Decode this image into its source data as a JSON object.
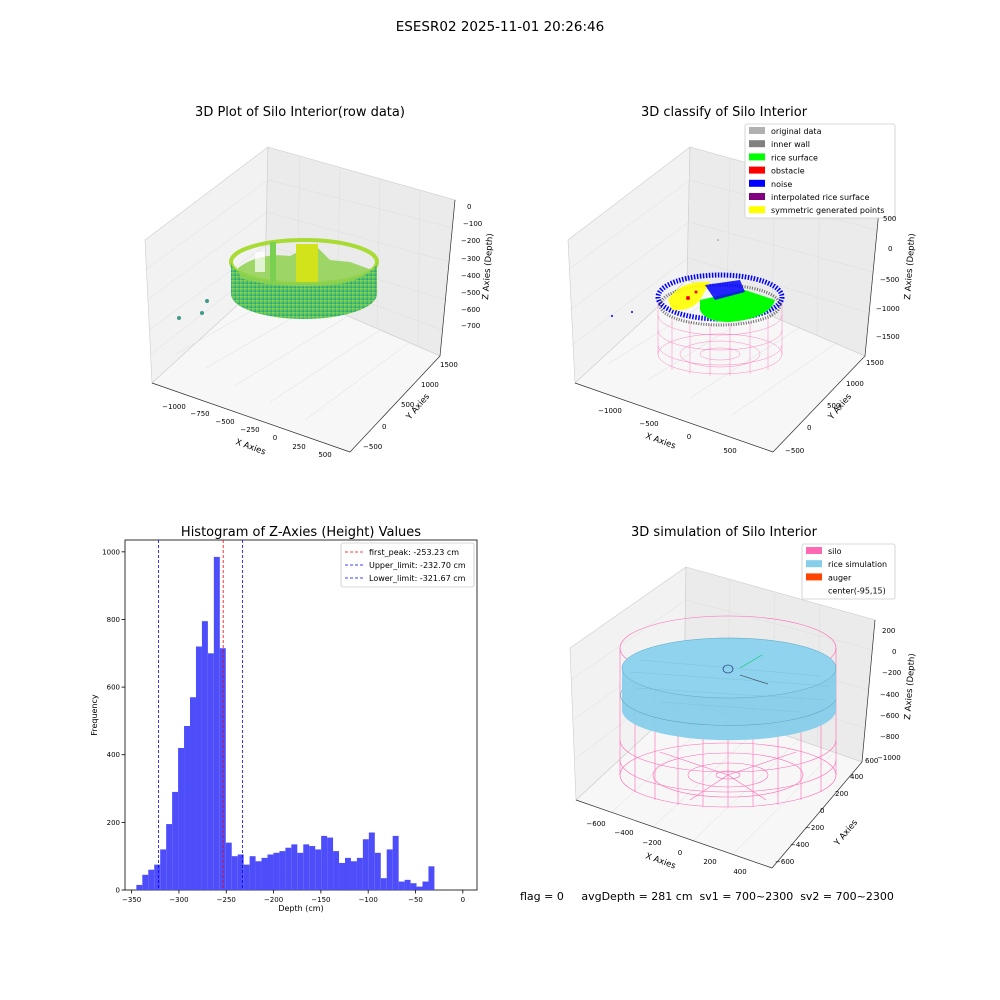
{
  "suptitle": "ESESR02 2025-11-01 20:26:46",
  "colors": {
    "hist_bar": "#4d4dfa",
    "peak_line": "#ff0000",
    "limit_line": "#0000ff",
    "rice_surface": "#00ff00",
    "noise": "#0000ff",
    "silo": "#ff69b4",
    "rice_simulation": "#87ceeb",
    "auger": "#ff4500"
  },
  "panel_raw": {
    "title": "3D Plot of Silo Interior(row data)",
    "xlabel": "X Axies",
    "ylabel": "Y Axies",
    "zlabel": "Z Axies (Depth)",
    "xticks": [
      "−1000",
      "−750",
      "−500",
      "−250",
      "0",
      "250",
      "500"
    ],
    "yticks": [
      "−500",
      "0",
      "500",
      "1000",
      "1500"
    ],
    "zticks": [
      "0",
      "−100",
      "−200",
      "−300",
      "−400",
      "−500",
      "−600",
      "−700"
    ]
  },
  "panel_classify": {
    "title": "3D classify of Silo Interior",
    "xlabel": "X Axies",
    "ylabel": "Y Axies",
    "zlabel": "Z Axies (Depth)",
    "xticks": [
      "−1000",
      "−500",
      "0",
      "500"
    ],
    "yticks": [
      "−500",
      "0",
      "500",
      "1000",
      "1500"
    ],
    "zticks": [
      "500",
      "0",
      "−500",
      "−1000",
      "−1500"
    ],
    "legend": [
      {
        "label": "original data",
        "color": "#b0b0b0"
      },
      {
        "label": "inner wall",
        "color": "#808080"
      },
      {
        "label": "rice surface",
        "color": "#00ff00"
      },
      {
        "label": "obstacle",
        "color": "#ff0000"
      },
      {
        "label": "noise",
        "color": "#0000ff"
      },
      {
        "label": "interpolated rice surface",
        "color": "#800080"
      },
      {
        "label": "symmetric generated points",
        "color": "#ffff00"
      }
    ]
  },
  "panel_sim": {
    "title": "3D simulation of Silo Interior",
    "xlabel": "X Axies",
    "ylabel": "Y Axies",
    "zlabel": "Z Axies (Depth)",
    "xticks": [
      "−600",
      "−400",
      "−200",
      "0",
      "200",
      "400"
    ],
    "yticks": [
      "−600",
      "−400",
      "−200",
      "0",
      "200",
      "400",
      "600"
    ],
    "zticks": [
      "200",
      "0",
      "−200",
      "−400",
      "−600",
      "−800",
      "−1000"
    ],
    "legend": [
      {
        "label": "silo",
        "color": "#ff69b4"
      },
      {
        "label": "rice simulation",
        "color": "#87ceeb"
      },
      {
        "label": "auger",
        "color": "#ff4500"
      },
      {
        "label": "center(-95,15)",
        "color": "#ffffff"
      }
    ],
    "status": "flag = 0     avgDepth = 281 cm  sv1 = 700~2300  sv2 = 700~2300"
  },
  "chart_data": {
    "type": "bar",
    "title": "Histogram of Z-Axies (Height) Values",
    "xlabel": "Depth (cm)",
    "ylabel": "Frequency",
    "xlim": [
      -357,
      15
    ],
    "ylim": [
      0,
      1035
    ],
    "xticks": [
      -350,
      -300,
      -250,
      -200,
      -150,
      -100,
      -50,
      0
    ],
    "xtick_labels": [
      "−350",
      "−300",
      "−250",
      "−200",
      "−150",
      "−100",
      "−50",
      "0"
    ],
    "yticks": [
      0,
      200,
      400,
      600,
      800,
      1000
    ],
    "bin_start": -345,
    "bin_width": 6.3,
    "values": [
      15,
      45,
      60,
      75,
      120,
      195,
      290,
      420,
      485,
      570,
      720,
      795,
      700,
      985,
      715,
      140,
      100,
      105,
      75,
      100,
      85,
      95,
      105,
      110,
      115,
      125,
      135,
      110,
      135,
      130,
      120,
      160,
      155,
      115,
      80,
      95,
      85,
      95,
      150,
      170,
      110,
      35,
      120,
      160,
      25,
      30,
      20,
      10,
      25,
      70
    ],
    "vlines": [
      {
        "x": -253.23,
        "color": "#ff0000",
        "label": "first_peak: -253.23 cm"
      },
      {
        "x": -232.7,
        "color": "#0000ff",
        "label": "Upper_limit: -232.70 cm"
      },
      {
        "x": -321.67,
        "color": "#0000ff",
        "label": "Lower_limit: -321.67 cm"
      }
    ],
    "legend": "top-right"
  }
}
